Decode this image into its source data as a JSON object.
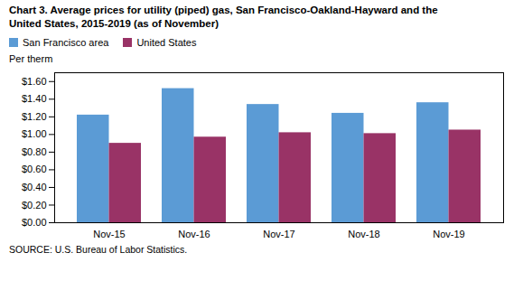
{
  "chart_data": {
    "type": "bar",
    "title": [
      "Chart 3. Average prices for utility (piped) gas, San Francisco-Oakland-Hayward and the",
      "United States, 2015-2019  (as of November)"
    ],
    "ylabel": "Per therm",
    "caption": "SOURCE: U.S. Bureau of Labor Statistics.",
    "categories": [
      "Nov-15",
      "Nov-16",
      "Nov-17",
      "Nov-18",
      "Nov-19"
    ],
    "series": [
      {
        "name": "San Francisco area",
        "color": "#5B9BD5",
        "values": [
          1.22,
          1.52,
          1.34,
          1.24,
          1.36
        ]
      },
      {
        "name": "United States",
        "color": "#993366",
        "values": [
          0.9,
          0.97,
          1.02,
          1.01,
          1.05
        ]
      }
    ],
    "ylim": [
      0,
      1.7
    ],
    "yticks": [
      {
        "value": 0.0,
        "label": "$0.00"
      },
      {
        "value": 0.2,
        "label": "$0.20"
      },
      {
        "value": 0.4,
        "label": "$0.40"
      },
      {
        "value": 0.6,
        "label": "$0.60"
      },
      {
        "value": 0.8,
        "label": "$0.80"
      },
      {
        "value": 1.0,
        "label": "$1.00"
      },
      {
        "value": 1.2,
        "label": "$1.20"
      },
      {
        "value": 1.4,
        "label": "$1.40"
      },
      {
        "value": 1.6,
        "label": "$1.60"
      }
    ],
    "legend": "upper left",
    "grid": false
  }
}
